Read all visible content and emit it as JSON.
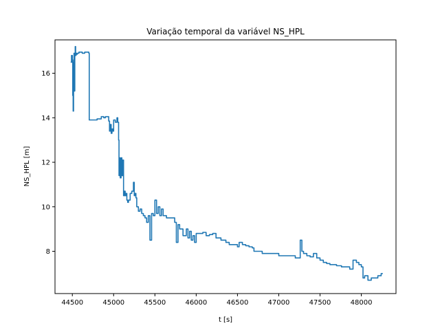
{
  "chart_data": {
    "type": "line",
    "title": "Variação temporal da variável NS_HPL",
    "xlabel": "t [s]",
    "ylabel": "NS_HPL [m]",
    "xlim": [
      44290,
      48420
    ],
    "ylim": [
      6.1,
      17.5
    ],
    "xticks": [
      44500,
      45000,
      45500,
      46000,
      46500,
      47000,
      47500,
      48000
    ],
    "yticks": [
      8,
      10,
      12,
      14,
      16
    ],
    "grid": false,
    "line_color": "#1f77b4",
    "series": [
      {
        "x": [
          44480,
          44490,
          44500,
          44505,
          44510,
          44515,
          44520,
          44525,
          44530,
          44535,
          44540,
          44545,
          44550,
          44560,
          44580,
          44600,
          44620,
          44650,
          44680,
          44700,
          44705,
          44710,
          44750,
          44800,
          44850,
          44880,
          44900,
          44940,
          44950,
          44960,
          44970,
          44980,
          44990,
          45000,
          45020,
          45040,
          45050,
          45060,
          45065,
          45070,
          45080,
          45090,
          45100,
          45110,
          45120,
          45130,
          45140,
          45150,
          45160,
          45170,
          45180,
          45200,
          45220,
          45240,
          45250,
          45260,
          45270,
          45280,
          45300,
          45320,
          45340,
          45360,
          45380,
          45400,
          45420,
          45440,
          45460,
          45480,
          45500,
          45520,
          45540,
          45560,
          45580,
          45600,
          45640,
          45700,
          45740,
          45760,
          45780,
          45800,
          45840,
          45880,
          45900,
          45920,
          45940,
          45960,
          45980,
          46000,
          46040,
          46080,
          46120,
          46160,
          46200,
          46240,
          46300,
          46360,
          46400,
          46420,
          46460,
          46500,
          46520,
          46560,
          46600,
          46640,
          46680,
          46700,
          46760,
          46800,
          46900,
          47000,
          47100,
          47200,
          47260,
          47280,
          47300,
          47340,
          47380,
          47420,
          47460,
          47500,
          47540,
          47580,
          47620,
          47660,
          47700,
          47760,
          47800,
          47860,
          47900,
          47940,
          47970,
          48000,
          48020,
          48040,
          48080,
          48120,
          48160,
          48200,
          48240,
          48260
        ],
        "values": [
          16.5,
          16.8,
          16.5,
          15.0,
          14.3,
          16.6,
          16.9,
          15.2,
          16.8,
          17.2,
          16.8,
          16.9,
          16.85,
          16.9,
          16.95,
          16.95,
          16.9,
          16.95,
          16.95,
          16.9,
          13.9,
          13.9,
          13.9,
          13.95,
          14.05,
          14.0,
          14.05,
          13.85,
          13.4,
          13.7,
          13.3,
          13.5,
          13.4,
          13.9,
          13.8,
          14.0,
          13.8,
          13.0,
          11.4,
          12.2,
          11.3,
          12.2,
          11.4,
          12.1,
          10.5,
          10.7,
          10.5,
          10.6,
          10.3,
          10.2,
          10.3,
          10.6,
          10.7,
          11.1,
          10.5,
          10.6,
          10.4,
          10.0,
          9.8,
          9.9,
          9.7,
          9.6,
          9.5,
          9.3,
          9.6,
          8.5,
          9.7,
          9.6,
          10.3,
          9.7,
          10.0,
          9.6,
          9.9,
          9.6,
          9.5,
          9.5,
          9.3,
          8.4,
          9.2,
          9.0,
          8.7,
          9.0,
          8.6,
          8.9,
          8.5,
          8.7,
          8.4,
          8.8,
          8.8,
          8.85,
          8.7,
          8.75,
          8.8,
          8.6,
          8.5,
          8.4,
          8.3,
          8.3,
          8.3,
          8.2,
          8.4,
          8.3,
          8.25,
          8.2,
          8.15,
          8.0,
          8.0,
          7.9,
          7.9,
          7.8,
          7.8,
          7.7,
          8.5,
          8.0,
          7.9,
          7.8,
          7.75,
          7.9,
          7.7,
          7.6,
          7.5,
          7.45,
          7.4,
          7.4,
          7.35,
          7.3,
          7.3,
          7.2,
          7.6,
          7.5,
          7.4,
          7.3,
          6.8,
          6.9,
          6.7,
          6.8,
          6.8,
          6.9,
          7.0,
          7.0
        ]
      }
    ]
  }
}
